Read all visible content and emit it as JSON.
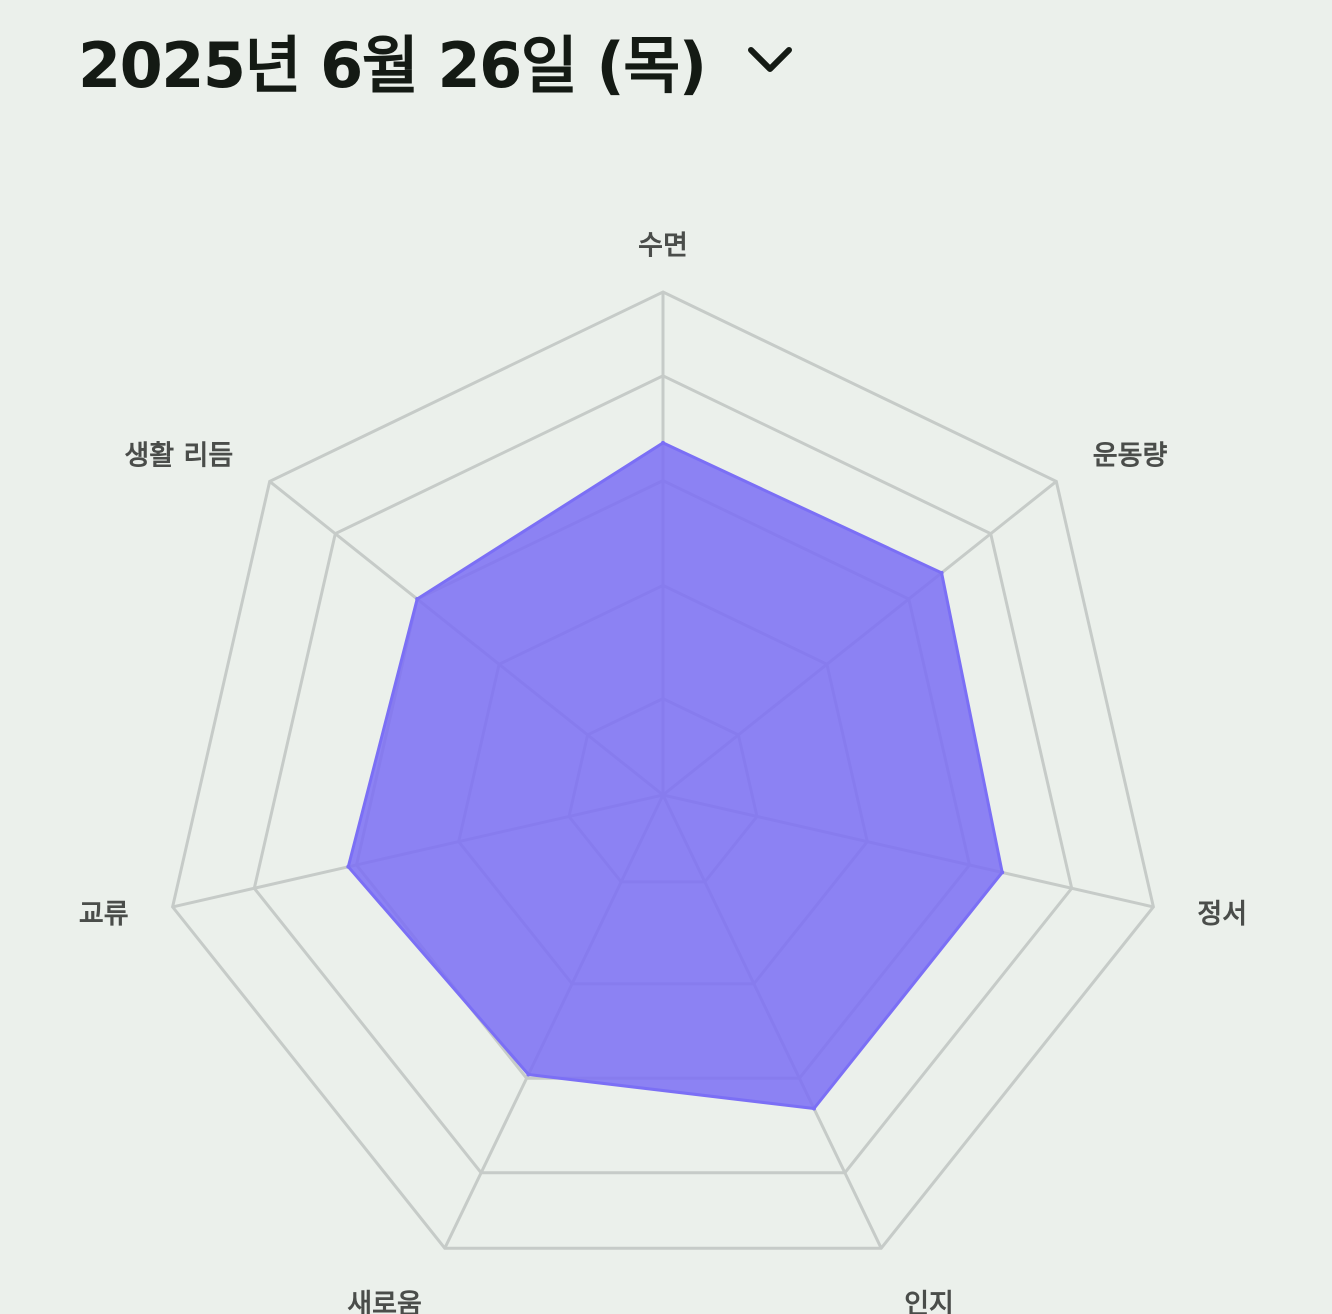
{
  "header": {
    "date_label": "2025년 6월 26일 (목)",
    "dropdown_icon": "chevron-down-icon"
  },
  "colors": {
    "background": "#ebf0eb",
    "grid": "#c6cbc8",
    "fill": "#7b6ff5",
    "fill_opacity": 0.85,
    "label": "#4a4d4a",
    "title": "#141a14"
  },
  "chart_data": {
    "type": "radar",
    "axes": [
      "수면",
      "운동량",
      "정서",
      "인지",
      "새로움",
      "교류",
      "생활 리듬"
    ],
    "series": [
      {
        "values": [
          0.84,
          0.85,
          0.83,
          0.83,
          0.74,
          0.77,
          0.75
        ]
      }
    ],
    "grid_levels": [
      0.23,
      0.5,
      0.75,
      1.0,
      1.2
    ],
    "range": [
      0,
      1.2
    ]
  }
}
